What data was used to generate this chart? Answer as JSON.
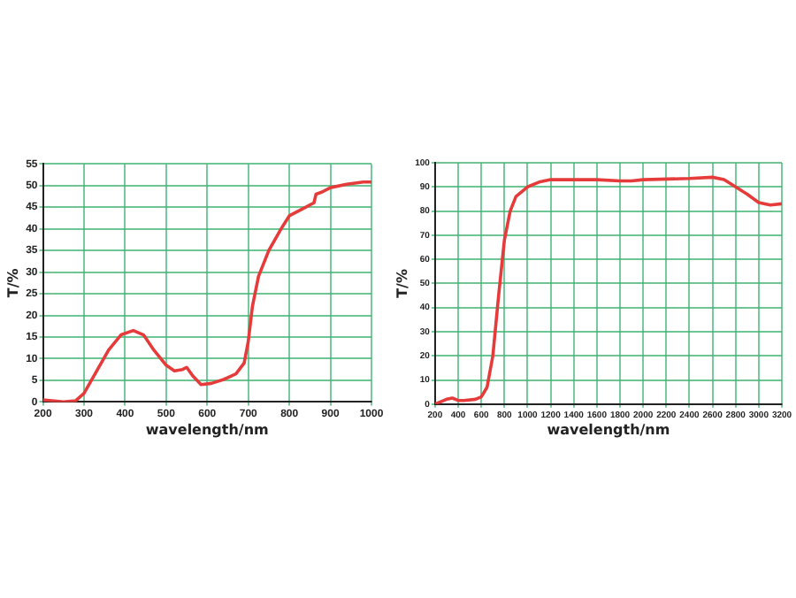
{
  "chart_data": [
    {
      "type": "line",
      "xlabel": "wavelength/nm",
      "ylabel": "T/%",
      "xlim": [
        200,
        1000
      ],
      "xticks": [
        200,
        300,
        400,
        500,
        600,
        700,
        800,
        900,
        1000
      ],
      "ylim": [
        0,
        55
      ],
      "yticks": [
        0,
        5,
        10,
        15,
        20,
        25,
        30,
        35,
        40,
        45,
        50,
        55
      ],
      "grid": true,
      "series": [
        {
          "color": "#e63b3b",
          "x": [
            200,
            250,
            280,
            300,
            330,
            360,
            390,
            420,
            445,
            470,
            500,
            520,
            540,
            550,
            565,
            585,
            610,
            640,
            670,
            690,
            700,
            710,
            725,
            750,
            780,
            800,
            830,
            860,
            865,
            880,
            900,
            940,
            980,
            1000
          ],
          "values": [
            0.5,
            0,
            0.3,
            2,
            7,
            12,
            15.5,
            16.5,
            15.5,
            12,
            8.5,
            7.2,
            7.5,
            8,
            6,
            4,
            4.3,
            5.2,
            6.5,
            9,
            14,
            22,
            29,
            35,
            40,
            43,
            44.5,
            46,
            48,
            48.5,
            49.5,
            50.3,
            50.8,
            50.8
          ]
        }
      ]
    },
    {
      "type": "line",
      "xlabel": "wavelength/nm",
      "ylabel": "T/%",
      "xlim": [
        200,
        3200
      ],
      "xticks": [
        200,
        400,
        600,
        800,
        1000,
        1200,
        1400,
        1600,
        1800,
        2000,
        2200,
        2400,
        2600,
        2800,
        3000,
        3200
      ],
      "ylim": [
        0,
        100
      ],
      "yticks": [
        0,
        10,
        20,
        30,
        40,
        50,
        60,
        70,
        80,
        90,
        100
      ],
      "grid": true,
      "series": [
        {
          "color": "#e63b3b",
          "x": [
            200,
            250,
            300,
            350,
            400,
            450,
            550,
            600,
            650,
            700,
            750,
            800,
            850,
            900,
            1000,
            1100,
            1200,
            1400,
            1600,
            1800,
            1900,
            2000,
            2400,
            2600,
            2700,
            2800,
            2900,
            3000,
            3100,
            3200
          ],
          "values": [
            0,
            1,
            2,
            2.5,
            1.5,
            1.5,
            2,
            3,
            7,
            20,
            45,
            68,
            80,
            86,
            90,
            92,
            93,
            93,
            93,
            92.5,
            92.5,
            93,
            93.5,
            94,
            93,
            90,
            87,
            83.5,
            82.5,
            83
          ]
        }
      ]
    }
  ]
}
